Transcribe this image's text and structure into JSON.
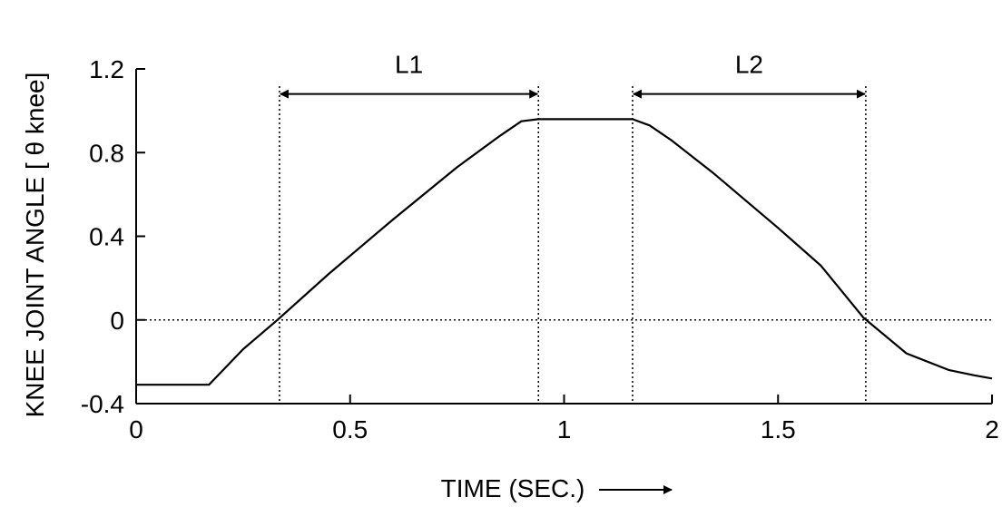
{
  "chart_data": {
    "type": "line",
    "xlabel": "TIME (SEC.)",
    "ylabel": "KNEE JOINT ANGLE [ θ knee]",
    "xlim": [
      0,
      2
    ],
    "ylim": [
      -0.4,
      1.2
    ],
    "xticks": [
      0,
      0.5,
      1,
      1.5,
      2
    ],
    "xtick_labels": [
      "0",
      "0.5",
      "1",
      "1.5",
      "2"
    ],
    "yticks": [
      -0.4,
      0,
      0.4,
      0.8,
      1.2
    ],
    "ytick_labels": [
      "-0.4",
      "0",
      "0.4",
      "0.8",
      "1.2"
    ],
    "grid": false,
    "series": [
      {
        "x": [
          0,
          0.17,
          0.25,
          0.33,
          0.45,
          0.6,
          0.75,
          0.85,
          0.9,
          0.94,
          1.16,
          1.2,
          1.25,
          1.35,
          1.5,
          1.6,
          1.7,
          1.8,
          1.9,
          1.96,
          2.0
        ],
        "y": [
          -0.31,
          -0.31,
          -0.14,
          0.0,
          0.22,
          0.48,
          0.73,
          0.88,
          0.95,
          0.96,
          0.96,
          0.93,
          0.86,
          0.7,
          0.44,
          0.26,
          0.01,
          -0.16,
          -0.24,
          -0.265,
          -0.28
        ]
      }
    ],
    "reference_lines": {
      "horizontal": [
        0
      ],
      "vertical": [
        0.335,
        0.94,
        1.16,
        1.705
      ]
    },
    "annotations": [
      {
        "label": "L1",
        "x_start": 0.335,
        "x_end": 0.94,
        "y": 1.08
      },
      {
        "label": "L2",
        "x_start": 1.16,
        "x_end": 1.705,
        "y": 1.08
      }
    ]
  }
}
